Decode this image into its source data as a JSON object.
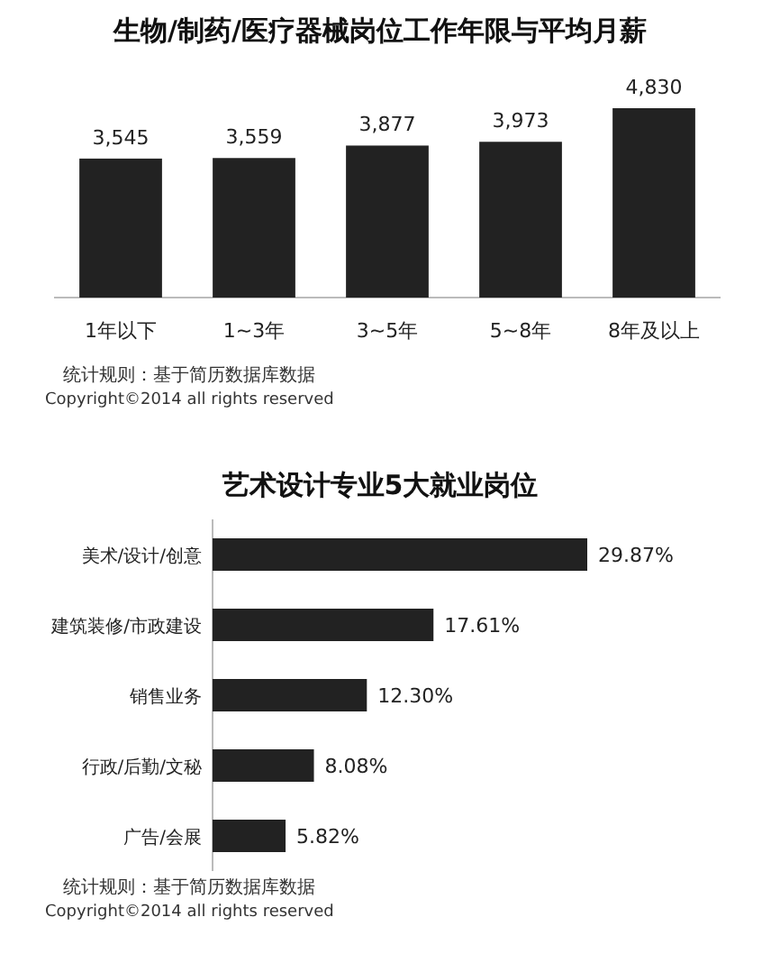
{
  "chart_data": [
    {
      "type": "bar",
      "title": "生物/制药/医疗器械岗位工作年限与平均月薪",
      "categories": [
        "1年以下",
        "1~3年",
        "3~5年",
        "5~8年",
        "8年及以上"
      ],
      "values": [
        3545,
        3559,
        3877,
        3973,
        4830
      ],
      "value_labels": [
        "3,545",
        "3,559",
        "3,877",
        "3,973",
        "4,830"
      ],
      "color": "#222222",
      "annotations": [
        "统计规则：基于简历数据库数据",
        "Copyright©2014 all rights reserved"
      ]
    },
    {
      "type": "bar",
      "orientation": "horizontal",
      "title": "艺术设计专业5大就业岗位",
      "categories": [
        "美术/设计/创意",
        "建筑装修/市政建设",
        "销售业务",
        "行政/后勤/文秘",
        "广告/会展"
      ],
      "values": [
        29.87,
        17.61,
        12.3,
        8.08,
        5.82
      ],
      "value_labels": [
        "29.87%",
        "17.61%",
        "12.30%",
        "8.08%",
        "5.82%"
      ],
      "color": "#222222",
      "annotations": [
        "统计规则：基于简历数据库数据",
        "Copyright©2014 all rights reserved"
      ]
    }
  ]
}
